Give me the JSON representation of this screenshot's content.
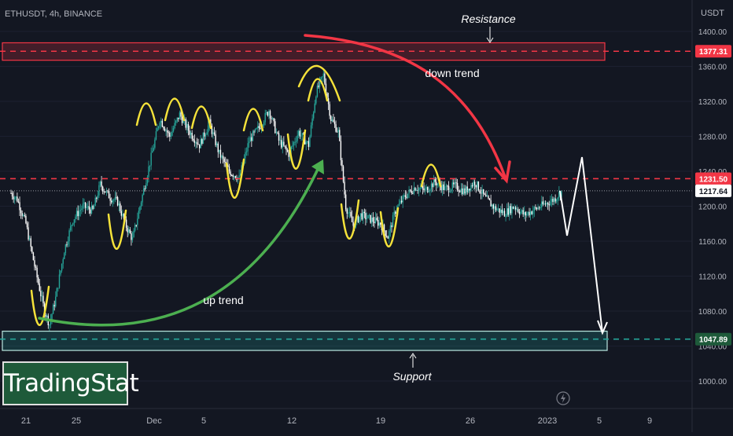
{
  "header": {
    "symbol_line": "ETHUSDT, 4h, BINANCE"
  },
  "brand": {
    "name": "TradingStat"
  },
  "annotations": {
    "resistance": "Resistance",
    "support": "Support",
    "down_trend": "down trend",
    "up_trend": "up trend"
  },
  "colors": {
    "background": "#131722",
    "up_candle": "#26a69a",
    "down_candle": "#ffffff",
    "resistance_line": "#f23645",
    "support_line": "#26a69a",
    "down_arrow": "#f23645",
    "up_arrow": "#4caf50",
    "marker": "#f5e23a",
    "projection": "#ffffff"
  },
  "chart_data": {
    "type": "candlestick",
    "currency": "USDT",
    "ylim": [
      985,
      1420
    ],
    "y_ticks": [
      1000,
      1040,
      1080,
      1120,
      1160,
      1200,
      1240,
      1280,
      1320,
      1360,
      1400
    ],
    "y_tick_labels": [
      "1000.00",
      "1040.00",
      "1080.00",
      "1120.00",
      "1160.00",
      "1200.00",
      "1240.00",
      "1280.00",
      "1320.00",
      "1360.00",
      "1400.00"
    ],
    "x_tick_labels": [
      "21",
      "25",
      "Dec",
      "5",
      "12",
      "19",
      "26",
      "2023",
      "5",
      "9"
    ],
    "price_labels": [
      {
        "label": "1377.31",
        "value": 1377.31,
        "kind": "resistance"
      },
      {
        "label": "1231.50",
        "value": 1231.5,
        "kind": "resistance"
      },
      {
        "label": "1217.64",
        "value": 1217.64,
        "kind": "last"
      },
      {
        "label": "1047.89",
        "value": 1047.89,
        "kind": "support"
      }
    ],
    "resistance_zone": [
      1367,
      1387
    ],
    "support_zone": [
      1035,
      1057
    ],
    "close_path": [
      {
        "i": 0,
        "v": 1215
      },
      {
        "i": 5,
        "v": 1208
      },
      {
        "i": 12,
        "v": 1180
      },
      {
        "i": 20,
        "v": 1125
      },
      {
        "i": 27,
        "v": 1080
      },
      {
        "i": 31,
        "v": 1065
      },
      {
        "i": 36,
        "v": 1095
      },
      {
        "i": 43,
        "v": 1150
      },
      {
        "i": 50,
        "v": 1185
      },
      {
        "i": 58,
        "v": 1200
      },
      {
        "i": 66,
        "v": 1195
      },
      {
        "i": 72,
        "v": 1225
      },
      {
        "i": 80,
        "v": 1210
      },
      {
        "i": 86,
        "v": 1205
      },
      {
        "i": 92,
        "v": 1180
      },
      {
        "i": 98,
        "v": 1162
      },
      {
        "i": 104,
        "v": 1200
      },
      {
        "i": 112,
        "v": 1250
      },
      {
        "i": 120,
        "v": 1300
      },
      {
        "i": 128,
        "v": 1280
      },
      {
        "i": 136,
        "v": 1305
      },
      {
        "i": 144,
        "v": 1285
      },
      {
        "i": 152,
        "v": 1270
      },
      {
        "i": 160,
        "v": 1295
      },
      {
        "i": 168,
        "v": 1260
      },
      {
        "i": 176,
        "v": 1240
      },
      {
        "i": 184,
        "v": 1232
      },
      {
        "i": 192,
        "v": 1275
      },
      {
        "i": 200,
        "v": 1290
      },
      {
        "i": 208,
        "v": 1310
      },
      {
        "i": 216,
        "v": 1275
      },
      {
        "i": 224,
        "v": 1260
      },
      {
        "i": 232,
        "v": 1285
      },
      {
        "i": 240,
        "v": 1270
      },
      {
        "i": 246,
        "v": 1330
      },
      {
        "i": 252,
        "v": 1350
      },
      {
        "i": 258,
        "v": 1300
      },
      {
        "i": 264,
        "v": 1285
      },
      {
        "i": 270,
        "v": 1200
      },
      {
        "i": 276,
        "v": 1178
      },
      {
        "i": 282,
        "v": 1190
      },
      {
        "i": 290,
        "v": 1185
      },
      {
        "i": 298,
        "v": 1180
      },
      {
        "i": 304,
        "v": 1165
      },
      {
        "i": 310,
        "v": 1195
      },
      {
        "i": 318,
        "v": 1212
      },
      {
        "i": 326,
        "v": 1222
      },
      {
        "i": 334,
        "v": 1218
      },
      {
        "i": 342,
        "v": 1228
      },
      {
        "i": 350,
        "v": 1220
      },
      {
        "i": 358,
        "v": 1223
      },
      {
        "i": 366,
        "v": 1217
      },
      {
        "i": 374,
        "v": 1228
      },
      {
        "i": 382,
        "v": 1210
      },
      {
        "i": 390,
        "v": 1198
      },
      {
        "i": 398,
        "v": 1192
      },
      {
        "i": 406,
        "v": 1200
      },
      {
        "i": 414,
        "v": 1190
      },
      {
        "i": 422,
        "v": 1196
      },
      {
        "i": 430,
        "v": 1202
      },
      {
        "i": 438,
        "v": 1208
      },
      {
        "i": 444,
        "v": 1217
      }
    ],
    "candle_count": 445,
    "projection": [
      1217.64,
      1185,
      1255,
      1196,
      1285,
      1047.89
    ]
  }
}
